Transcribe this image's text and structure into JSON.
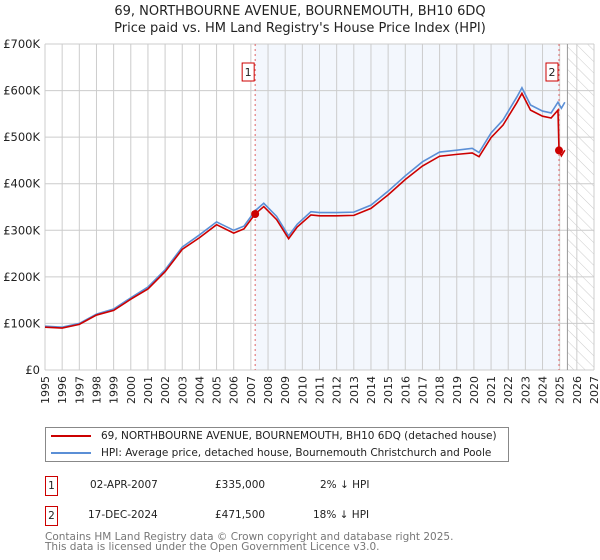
{
  "chart_data": {
    "type": "line",
    "title": "69, NORTHBOURNE AVENUE, BOURNEMOUTH, BH10 6DQ",
    "subtitle": "Price paid vs. HM Land Registry's House Price Index (HPI)",
    "xlim": [
      1995,
      2027
    ],
    "ylim": [
      0,
      700000
    ],
    "grid": true,
    "x_ticks": [
      "1995",
      "1996",
      "1997",
      "1998",
      "1999",
      "2000",
      "2001",
      "2002",
      "2003",
      "2004",
      "2005",
      "2006",
      "2007",
      "2008",
      "2009",
      "2010",
      "2011",
      "2012",
      "2013",
      "2014",
      "2015",
      "2016",
      "2017",
      "2018",
      "2019",
      "2020",
      "2021",
      "2022",
      "2023",
      "2024",
      "2025",
      "2026",
      "2027"
    ],
    "y_ticks": [
      {
        "v": 0,
        "label": "£0"
      },
      {
        "v": 100000,
        "label": "£100K"
      },
      {
        "v": 200000,
        "label": "£200K"
      },
      {
        "v": 300000,
        "label": "£300K"
      },
      {
        "v": 400000,
        "label": "£400K"
      },
      {
        "v": 500000,
        "label": "£500K"
      },
      {
        "v": 600000,
        "label": "£600K"
      },
      {
        "v": 700000,
        "label": "£700K"
      }
    ],
    "shaded_period": [
      2007.25,
      2024.96
    ],
    "forecast_hatch_from": 2025.45,
    "series": [
      {
        "name": "69, NORTHBOURNE AVENUE, BOURNEMOUTH, BH10 6DQ (detached house)",
        "color": "#cc0000",
        "x": [
          1995,
          1996,
          1997,
          1998,
          1999,
          2000,
          2001,
          2002,
          2003,
          2004,
          2005,
          2006,
          2006.6,
          2007.25,
          2007.75,
          2008.5,
          2009.2,
          2009.7,
          2010.5,
          2011,
          2012,
          2013,
          2014,
          2015,
          2016,
          2017,
          2018,
          2019,
          2019.9,
          2020.3,
          2021,
          2021.7,
          2022.5,
          2022.8,
          2023.3,
          2024,
          2024.5,
          2024.9,
          2024.96,
          2025.1,
          2025.3
        ],
        "y": [
          92000,
          90000,
          98000,
          118000,
          128000,
          152000,
          174000,
          211000,
          259000,
          284000,
          312000,
          294000,
          303000,
          335000,
          351000,
          323000,
          282000,
          307000,
          333000,
          331000,
          331000,
          332000,
          347000,
          376000,
          409000,
          438000,
          459000,
          463000,
          466000,
          458000,
          499000,
          526000,
          574000,
          594000,
          558000,
          545000,
          541000,
          558000,
          471500,
          460000,
          472000
        ]
      },
      {
        "name": "HPI: Average price, detached house, Bournemouth Christchurch and Poole",
        "color": "#5b8fd6",
        "x": [
          1995,
          1996,
          1997,
          1998,
          1999,
          2000,
          2001,
          2002,
          2003,
          2004,
          2005,
          2006,
          2006.6,
          2007.25,
          2007.75,
          2008.5,
          2009.2,
          2009.7,
          2010.5,
          2011,
          2012,
          2013,
          2014,
          2015,
          2016,
          2017,
          2018,
          2019,
          2019.9,
          2020.3,
          2021,
          2021.7,
          2022.5,
          2022.8,
          2023.3,
          2024,
          2024.5,
          2024.9,
          2025.1,
          2025.3
        ],
        "y": [
          94000,
          92000,
          100000,
          120000,
          131000,
          155000,
          178000,
          215000,
          264000,
          290000,
          318000,
          300000,
          309000,
          342000,
          358000,
          330000,
          288000,
          313000,
          340000,
          338000,
          338000,
          339000,
          354000,
          384000,
          417000,
          447000,
          468000,
          472000,
          476000,
          467000,
          509000,
          537000,
          586000,
          606000,
          569000,
          556000,
          552000,
          575000,
          562000,
          575000
        ]
      }
    ],
    "annotations": [
      {
        "id": "1",
        "x": 2007.25,
        "y": 335000
      },
      {
        "id": "2",
        "x": 2024.96,
        "y": 471500
      }
    ]
  },
  "legend": {
    "items": [
      "69, NORTHBOURNE AVENUE, BOURNEMOUTH, BH10 6DQ (detached house)",
      "HPI: Average price, detached house, Bournemouth Christchurch and Poole"
    ]
  },
  "transactions": [
    {
      "id": "1",
      "date": "02-APR-2007",
      "price": "£335,000",
      "hpi": "2% ↓ HPI"
    },
    {
      "id": "2",
      "date": "17-DEC-2024",
      "price": "£471,500",
      "hpi": "18% ↓ HPI"
    }
  ],
  "footer": {
    "line1": "Contains HM Land Registry data © Crown copyright and database right 2025.",
    "line2": "This data is licensed under the Open Government Licence v3.0."
  }
}
